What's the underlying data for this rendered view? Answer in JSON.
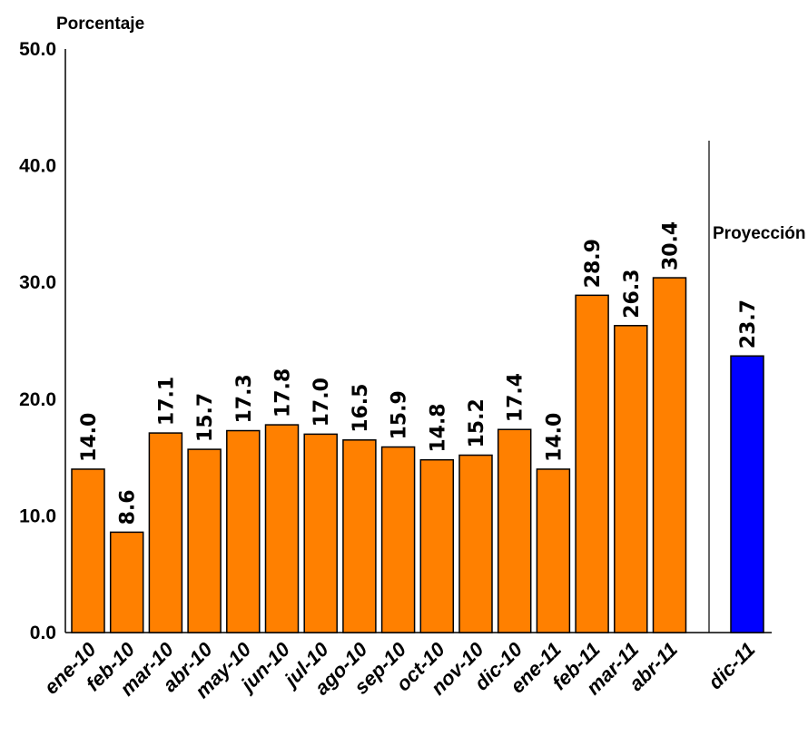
{
  "chart_data": {
    "type": "bar",
    "ylabel": "Porcentaje",
    "ylim": [
      0,
      50
    ],
    "yticks": [
      "0.0",
      "10.0",
      "20.0",
      "30.0",
      "40.0",
      "50.0"
    ],
    "categories": [
      "ene-10",
      "feb-10",
      "mar-10",
      "abr-10",
      "may-10",
      "jun-10",
      "jul-10",
      "ago-10",
      "sep-10",
      "oct-10",
      "nov-10",
      "dic-10",
      "ene-11",
      "feb-11",
      "mar-11",
      "abr-11"
    ],
    "values": [
      14.0,
      8.6,
      17.1,
      15.7,
      17.3,
      17.8,
      17.0,
      16.5,
      15.9,
      14.8,
      15.2,
      17.4,
      14.0,
      28.9,
      26.3,
      30.4
    ],
    "value_labels": [
      "14.0",
      "8.6",
      "17.1",
      "15.7",
      "17.3",
      "17.8",
      "17.0",
      "16.5",
      "15.9",
      "14.8",
      "15.2",
      "17.4",
      "14.0",
      "28.9",
      "26.3",
      "30.4"
    ],
    "bar_color": "#FF8000",
    "projection": {
      "label": "Proyección",
      "category": "dic-11",
      "value": 23.7,
      "value_label": "23.7",
      "color": "#0000FF"
    }
  }
}
